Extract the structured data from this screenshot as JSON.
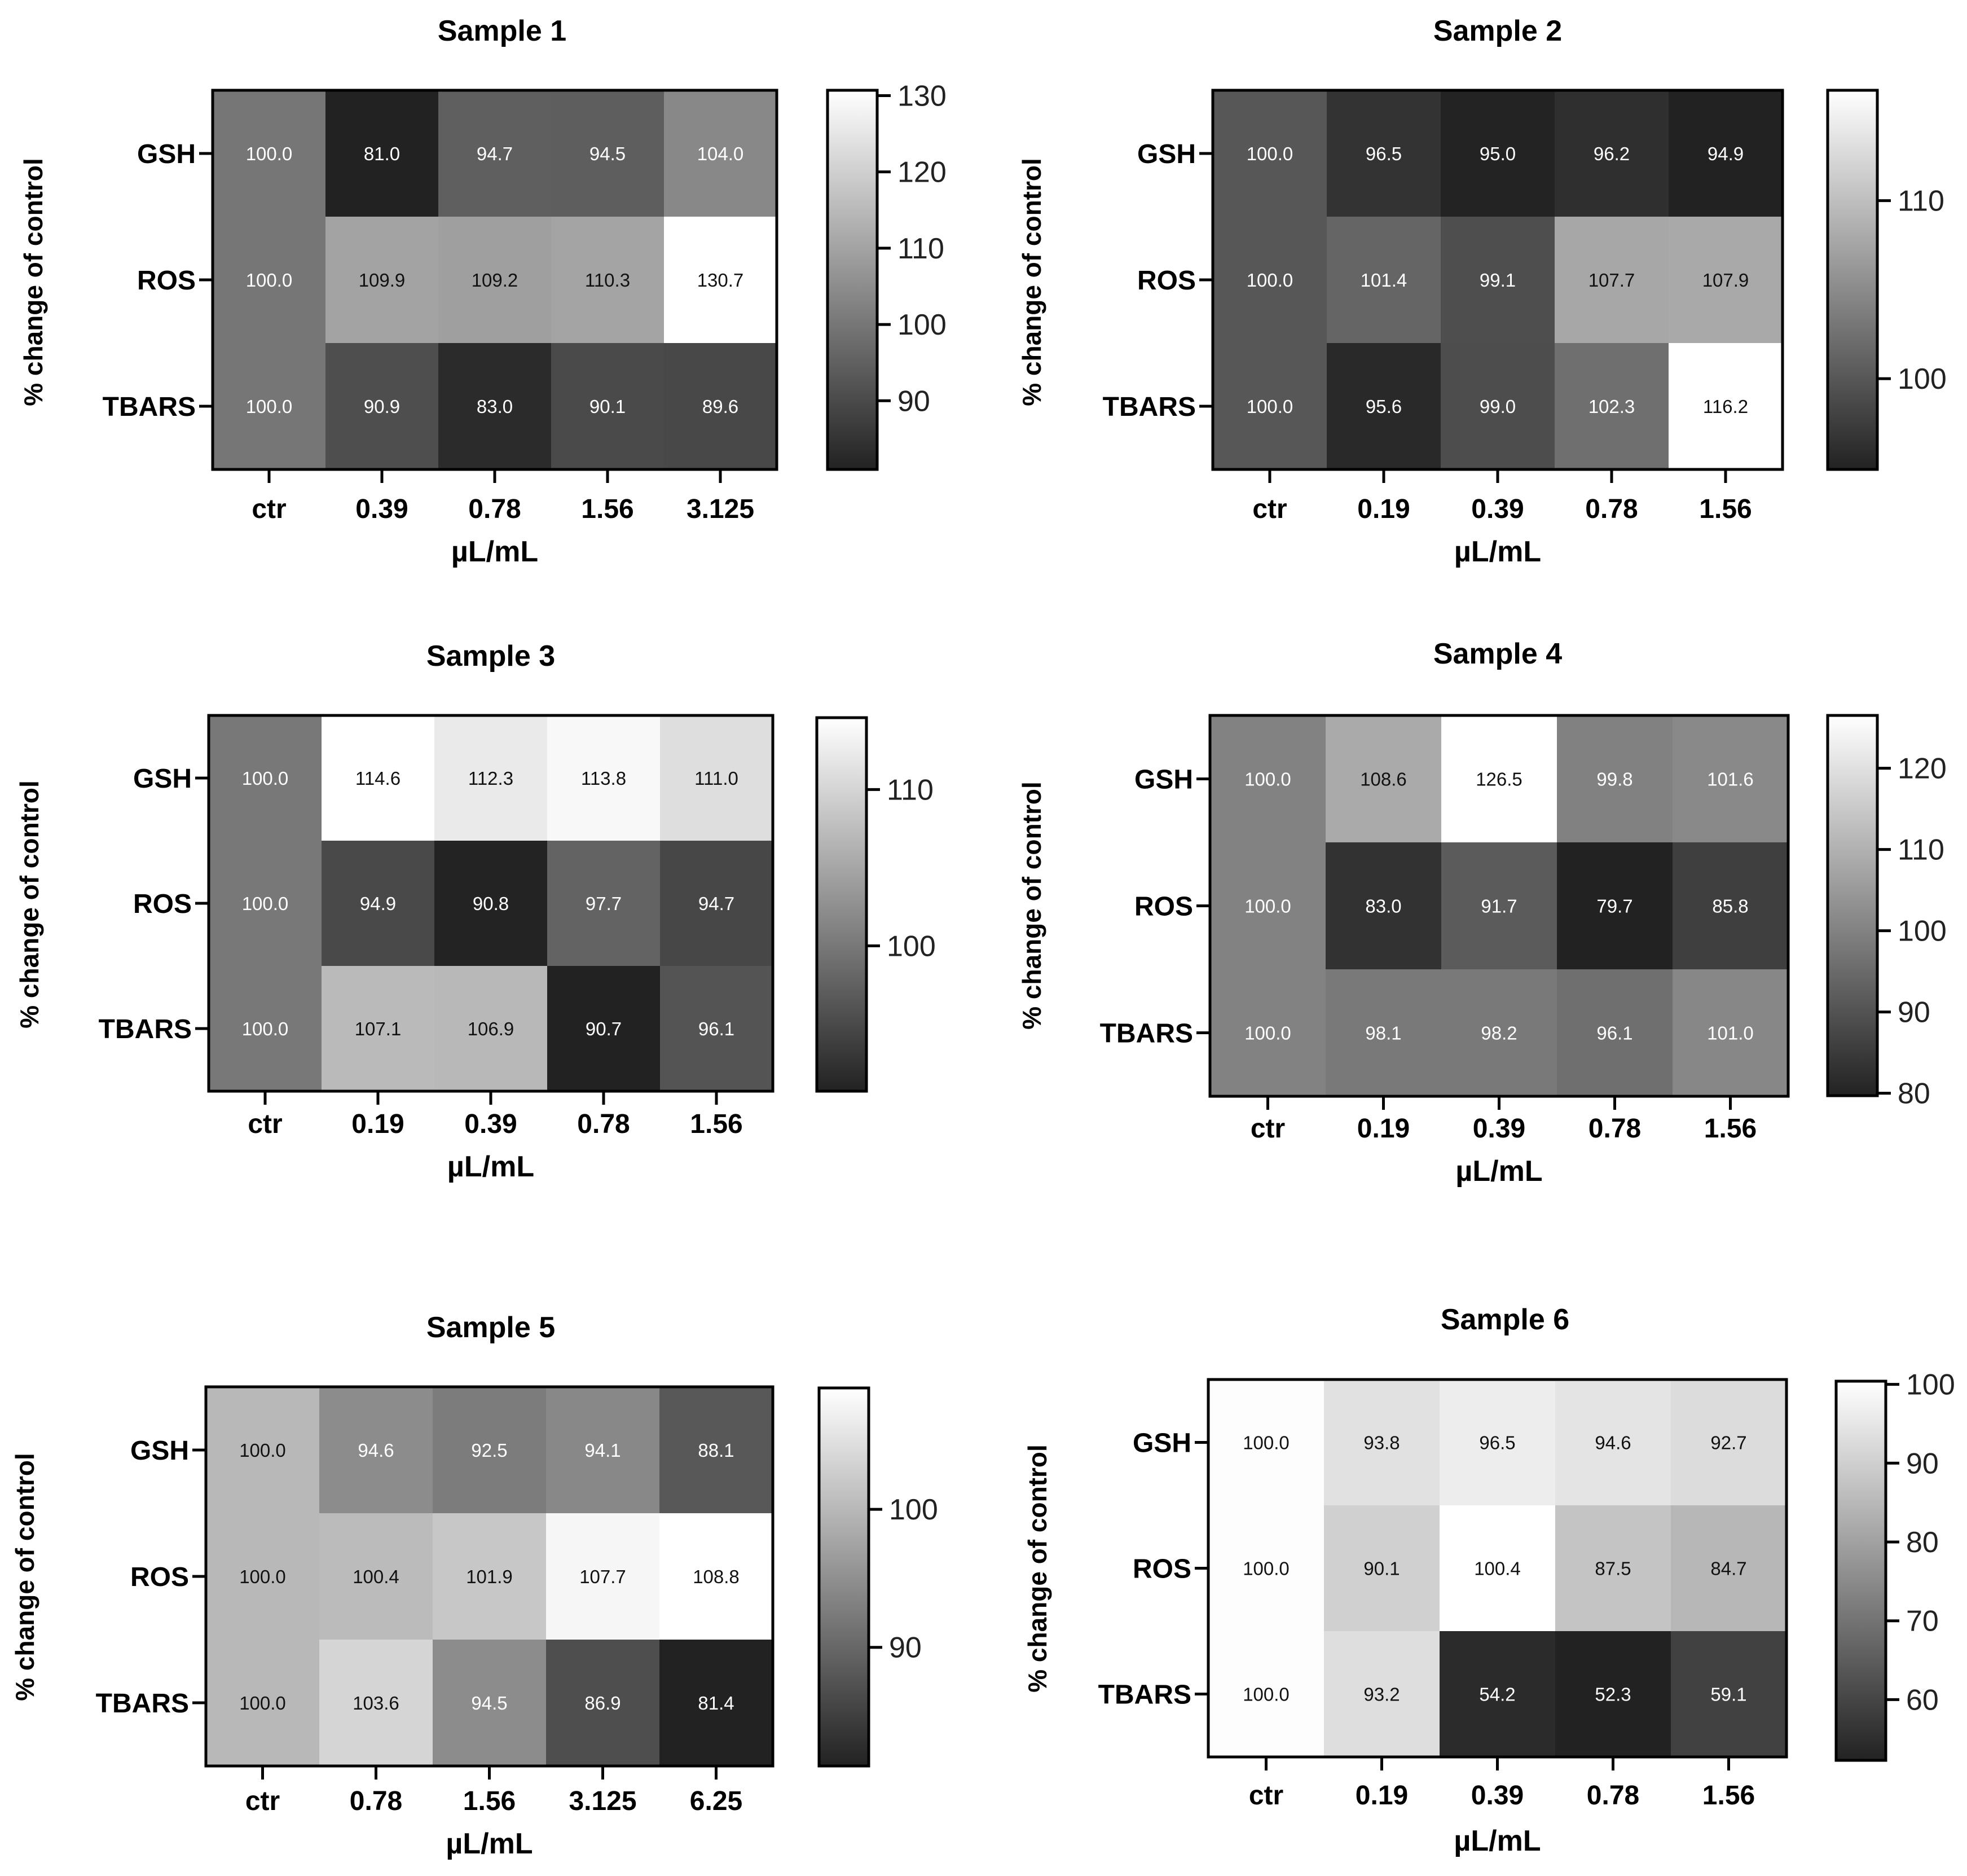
{
  "chart_data": [
    {
      "type": "heatmap",
      "title": "Sample 1",
      "xlabel": "µL/mL",
      "ylabel": "% change of control",
      "rows": [
        "GSH",
        "ROS",
        "TBARS"
      ],
      "columns": [
        "ctr",
        "0.39",
        "0.78",
        "1.56",
        "3.125"
      ],
      "values": [
        [
          100.0,
          81.0,
          94.7,
          94.5,
          104.0
        ],
        [
          100.0,
          109.9,
          109.2,
          110.3,
          130.7
        ],
        [
          100.0,
          90.9,
          83.0,
          90.1,
          89.6
        ]
      ],
      "value_labels": [
        [
          "100.0",
          "81.0",
          "94.7",
          "94.5",
          "104.0"
        ],
        [
          "100.0",
          "109.9",
          "109.2",
          "110.3",
          "130.7"
        ],
        [
          "100.0",
          "90.9",
          "83.0",
          "90.1",
          "89.6"
        ]
      ],
      "colorbar": {
        "min": 81,
        "max": 130.7,
        "ticks": [
          90,
          100,
          110,
          120,
          130
        ],
        "tick_labels": [
          "90",
          "100",
          "110",
          "120",
          "130"
        ]
      },
      "colormap": "grayscale (dark = low, white = high)"
    },
    {
      "type": "heatmap",
      "title": "Sample 2",
      "xlabel": "µL/mL",
      "ylabel": "% change of control",
      "rows": [
        "GSH",
        "ROS",
        "TBARS"
      ],
      "columns": [
        "ctr",
        "0.19",
        "0.39",
        "0.78",
        "1.56"
      ],
      "values": [
        [
          100.0,
          96.5,
          95.0,
          96.2,
          94.9
        ],
        [
          100.0,
          101.4,
          99.1,
          107.7,
          107.9
        ],
        [
          100.0,
          95.6,
          99.0,
          102.3,
          116.2
        ]
      ],
      "value_labels": [
        [
          "100.0",
          "96.5",
          "95.0",
          "96.2",
          "94.9"
        ],
        [
          "100.0",
          "101.4",
          "99.1",
          "107.7",
          "107.9"
        ],
        [
          "100.0",
          "95.6",
          "99.0",
          "102.3",
          "116.2"
        ]
      ],
      "colorbar": {
        "min": 94.9,
        "max": 116.2,
        "ticks": [
          100,
          110
        ],
        "tick_labels": [
          "100",
          "110"
        ]
      },
      "colormap": "grayscale (dark = low, white = high)"
    },
    {
      "type": "heatmap",
      "title": "Sample 3",
      "xlabel": "µL/mL",
      "ylabel": "% change of control",
      "rows": [
        "GSH",
        "ROS",
        "TBARS"
      ],
      "columns": [
        "ctr",
        "0.19",
        "0.39",
        "0.78",
        "1.56"
      ],
      "values": [
        [
          100.0,
          114.6,
          112.3,
          113.8,
          111.0
        ],
        [
          100.0,
          94.9,
          90.8,
          97.7,
          94.7
        ],
        [
          100.0,
          107.1,
          106.9,
          90.7,
          96.1
        ]
      ],
      "value_labels": [
        [
          "100.0",
          "114.6",
          "112.3",
          "113.8",
          "111.0"
        ],
        [
          "100.0",
          "94.9",
          "90.8",
          "97.7",
          "94.7"
        ],
        [
          "100.0",
          "107.1",
          "106.9",
          "90.7",
          "96.1"
        ]
      ],
      "colorbar": {
        "min": 90.7,
        "max": 114.6,
        "ticks": [
          100,
          110
        ],
        "tick_labels": [
          "100",
          "110"
        ]
      },
      "colormap": "grayscale (dark = low, white = high)"
    },
    {
      "type": "heatmap",
      "title": "Sample 4",
      "xlabel": "µL/mL",
      "ylabel": "% change of control",
      "rows": [
        "GSH",
        "ROS",
        "TBARS"
      ],
      "columns": [
        "ctr",
        "0.19",
        "0.39",
        "0.78",
        "1.56"
      ],
      "values": [
        [
          100.0,
          108.6,
          126.5,
          99.8,
          101.6
        ],
        [
          100.0,
          83.0,
          91.7,
          79.7,
          85.8
        ],
        [
          100.0,
          98.1,
          98.2,
          96.1,
          101.0
        ]
      ],
      "value_labels": [
        [
          "100.0",
          "108.6",
          "126.5",
          "99.8",
          "101.6"
        ],
        [
          "100.0",
          "83.0",
          "91.7",
          "79.7",
          "85.8"
        ],
        [
          "100.0",
          "98.1",
          "98.2",
          "96.1",
          "101.0"
        ]
      ],
      "colorbar": {
        "min": 79.7,
        "max": 126.5,
        "ticks": [
          80,
          90,
          100,
          110,
          120
        ],
        "tick_labels": [
          "80",
          "90",
          "100",
          "110",
          "120"
        ]
      },
      "colormap": "grayscale (dark = low, white = high)"
    },
    {
      "type": "heatmap",
      "title": "Sample 5",
      "xlabel": "µL/mL",
      "ylabel": "% change of control",
      "rows": [
        "GSH",
        "ROS",
        "TBARS"
      ],
      "columns": [
        "ctr",
        "0.78",
        "1.56",
        "3.125",
        "6.25"
      ],
      "values": [
        [
          100.0,
          94.6,
          92.5,
          94.1,
          88.1
        ],
        [
          100.0,
          100.4,
          101.9,
          107.7,
          108.8
        ],
        [
          100.0,
          103.6,
          94.5,
          86.9,
          81.4
        ]
      ],
      "value_labels": [
        [
          "100.0",
          "94.6",
          "92.5",
          "94.1",
          "88.1"
        ],
        [
          "100.0",
          "100.4",
          "101.9",
          "107.7",
          "108.8"
        ],
        [
          "100.0",
          "103.6",
          "94.5",
          "86.9",
          "81.4"
        ]
      ],
      "colorbar": {
        "min": 81.4,
        "max": 108.8,
        "ticks": [
          90,
          100
        ],
        "tick_labels": [
          "90",
          "100"
        ]
      },
      "colormap": "grayscale (dark = low, white = high)"
    },
    {
      "type": "heatmap",
      "title": "Sample 6",
      "xlabel": "µL/mL",
      "ylabel": "% change of control",
      "rows": [
        "GSH",
        "ROS",
        "TBARS"
      ],
      "columns": [
        "ctr",
        "0.19",
        "0.39",
        "0.78",
        "1.56"
      ],
      "values": [
        [
          100.0,
          93.8,
          96.5,
          94.6,
          92.7
        ],
        [
          100.0,
          90.1,
          100.4,
          87.5,
          84.7
        ],
        [
          100.0,
          93.2,
          54.2,
          52.3,
          59.1
        ]
      ],
      "value_labels": [
        [
          "100.0",
          "93.8",
          "96.5",
          "94.6",
          "92.7"
        ],
        [
          "100.0",
          "90.1",
          "100.4",
          "87.5",
          "84.7"
        ],
        [
          "100.0",
          "93.2",
          "54.2",
          "52.3",
          "59.1"
        ]
      ],
      "colorbar": {
        "min": 52.3,
        "max": 100.4,
        "ticks": [
          60,
          70,
          80,
          90,
          100
        ],
        "tick_labels": [
          "60",
          "70",
          "80",
          "90",
          "100"
        ]
      },
      "colormap": "grayscale (dark = low, white = high)"
    }
  ]
}
